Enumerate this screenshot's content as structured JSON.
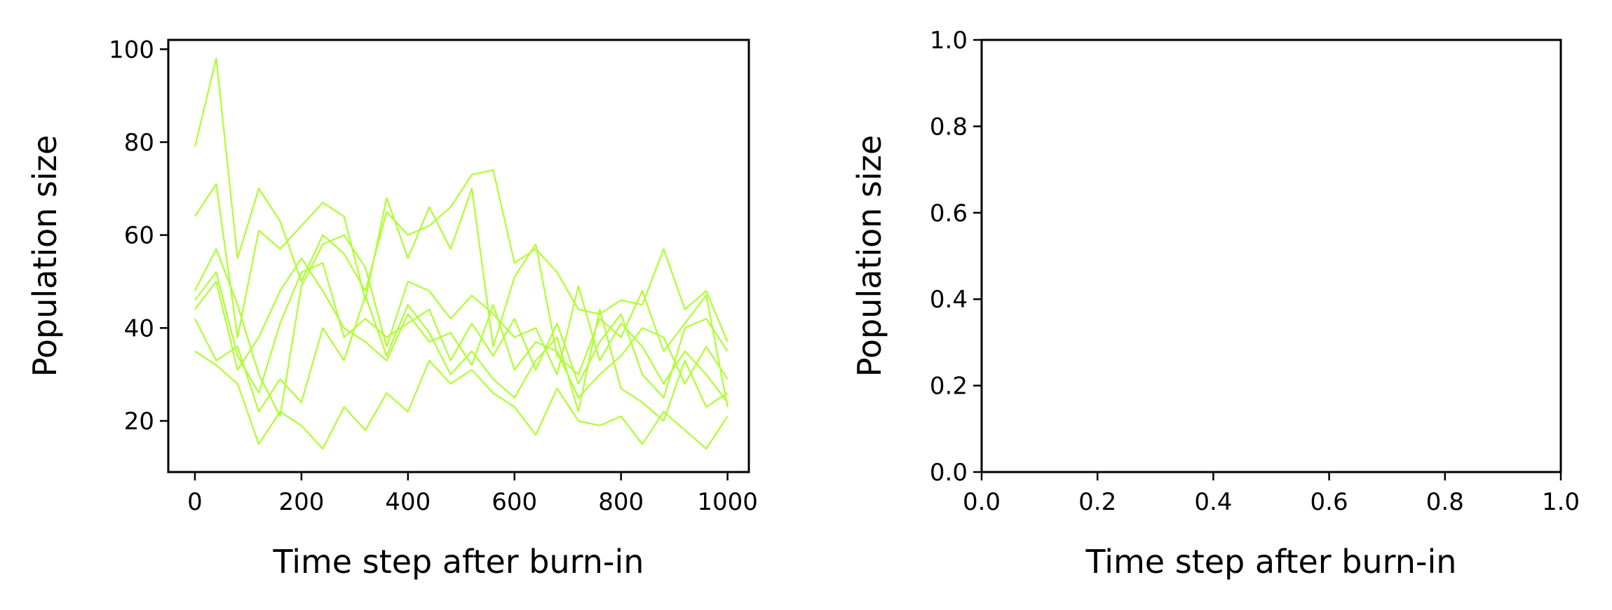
{
  "figure": {
    "background": "#ffffff",
    "line_color": "#adff2f",
    "axis_color": "#000000"
  },
  "chart_data": [
    {
      "type": "line",
      "xlabel": "Time step after burn-in",
      "ylabel": "Population size",
      "xlim": [
        -50,
        1040
      ],
      "ylim": [
        9,
        102
      ],
      "xticks": [
        0,
        200,
        400,
        600,
        800,
        1000
      ],
      "xtick_labels": [
        "0",
        "200",
        "400",
        "600",
        "800",
        "1000"
      ],
      "yticks": [
        20,
        40,
        60,
        80,
        100
      ],
      "ytick_labels": [
        "20",
        "40",
        "60",
        "80",
        "100"
      ],
      "grid": false,
      "series": [
        {
          "x": [
            0,
            40,
            80,
            120,
            160,
            200,
            240,
            280,
            320,
            360,
            400,
            440,
            480,
            520,
            560,
            600,
            640,
            680,
            720,
            760,
            800,
            840,
            880,
            920,
            960,
            1000
          ],
          "values": [
            79,
            98,
            55,
            70,
            63,
            50,
            60,
            56,
            48,
            65,
            60,
            62,
            66,
            73,
            74,
            54,
            57,
            52,
            44,
            43,
            46,
            45,
            57,
            44,
            48,
            37
          ]
        },
        {
          "x": [
            0,
            40,
            80,
            120,
            160,
            200,
            240,
            280,
            320,
            360,
            400,
            440,
            480,
            520,
            560,
            600,
            640,
            680,
            720,
            760,
            800,
            840,
            880,
            920,
            960,
            1000
          ],
          "values": [
            64,
            71,
            38,
            61,
            57,
            62,
            67,
            64,
            46,
            68,
            55,
            66,
            57,
            70,
            36,
            51,
            58,
            34,
            30,
            42,
            38,
            48,
            35,
            41,
            47,
            23
          ]
        },
        {
          "x": [
            0,
            40,
            80,
            120,
            160,
            200,
            240,
            280,
            320,
            360,
            400,
            440,
            480,
            520,
            560,
            600,
            640,
            680,
            720,
            760,
            800,
            840,
            880,
            920,
            960,
            1000
          ],
          "values": [
            48,
            57,
            45,
            30,
            21,
            49,
            58,
            60,
            53,
            36,
            50,
            48,
            42,
            47,
            43,
            38,
            40,
            30,
            49,
            33,
            41,
            36,
            28,
            35,
            30,
            24
          ]
        },
        {
          "x": [
            0,
            40,
            80,
            120,
            160,
            200,
            240,
            280,
            320,
            360,
            400,
            440,
            480,
            520,
            560,
            600,
            640,
            680,
            720,
            760,
            800,
            840,
            880,
            920,
            960,
            1000
          ],
          "values": [
            42,
            33,
            36,
            22,
            29,
            24,
            40,
            33,
            47,
            34,
            45,
            39,
            30,
            35,
            29,
            25,
            33,
            38,
            22,
            44,
            27,
            24,
            20,
            33,
            23,
            26
          ]
        },
        {
          "x": [
            0,
            40,
            80,
            120,
            160,
            200,
            240,
            280,
            320,
            360,
            400,
            440,
            480,
            520,
            560,
            600,
            640,
            680,
            720,
            760,
            800,
            840,
            880,
            920,
            960,
            1000
          ],
          "values": [
            35,
            32,
            28,
            15,
            22,
            19,
            14,
            23,
            18,
            26,
            22,
            33,
            28,
            31,
            26,
            23,
            17,
            27,
            20,
            19,
            21,
            15,
            22,
            18,
            14,
            21
          ]
        },
        {
          "x": [
            0,
            40,
            80,
            120,
            160,
            200,
            240,
            280,
            320,
            360,
            400,
            440,
            480,
            520,
            560,
            600,
            640,
            680,
            720,
            760,
            800,
            840,
            880,
            920,
            960,
            1000
          ],
          "values": [
            46,
            52,
            34,
            26,
            41,
            52,
            54,
            38,
            42,
            38,
            41,
            44,
            33,
            41,
            34,
            42,
            31,
            41,
            28,
            37,
            43,
            30,
            25,
            40,
            42,
            35
          ]
        },
        {
          "x": [
            0,
            40,
            80,
            120,
            160,
            200,
            240,
            280,
            320,
            360,
            400,
            440,
            480,
            520,
            560,
            600,
            640,
            680,
            720,
            760,
            800,
            840,
            880,
            920,
            960,
            1000
          ],
          "values": [
            44,
            50,
            31,
            38,
            48,
            55,
            48,
            40,
            37,
            33,
            43,
            37,
            39,
            32,
            45,
            31,
            37,
            35,
            25,
            30,
            34,
            40,
            38,
            28,
            36,
            29
          ]
        }
      ]
    },
    {
      "type": "line",
      "xlabel": "Time step after burn-in",
      "ylabel": "Population size",
      "xlim": [
        0,
        1
      ],
      "ylim": [
        0,
        1
      ],
      "xticks": [
        0,
        0.2,
        0.4,
        0.6,
        0.8,
        1.0
      ],
      "xtick_labels": [
        "0.0",
        "0.2",
        "0.4",
        "0.6",
        "0.8",
        "1.0"
      ],
      "yticks": [
        0,
        0.2,
        0.4,
        0.6,
        0.8,
        1.0
      ],
      "ytick_labels": [
        "0.0",
        "0.2",
        "0.4",
        "0.6",
        "0.8",
        "1.0"
      ],
      "grid": false,
      "series": []
    }
  ]
}
